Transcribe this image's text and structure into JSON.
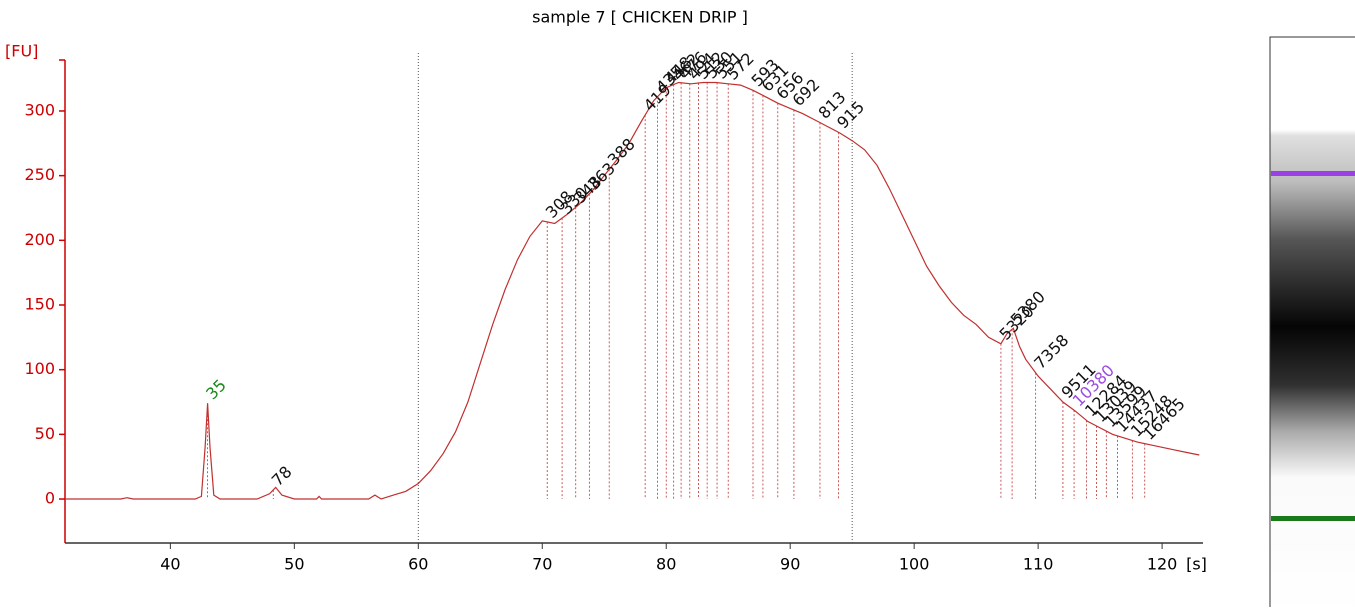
{
  "chart_data": {
    "type": "line",
    "title": "sample 7  [ CHICKEN DRIP ]",
    "ylabel": "[FU]",
    "xlabel": "[s]",
    "xlim": [
      31.5,
      123.3
    ],
    "ylim": [
      -34,
      351
    ],
    "xticks": [
      40,
      50,
      60,
      70,
      80,
      90,
      100,
      110,
      120
    ],
    "yticks": [
      0,
      50,
      100,
      150,
      200,
      250,
      300
    ],
    "axis_color": "#cc0000",
    "region": [
      60,
      95
    ],
    "series": [
      {
        "color": "#c0302f",
        "x": [
          31.5,
          36,
          36.5,
          37,
          42,
          42.5,
          42.8,
          43,
          43.2,
          43.5,
          44,
          47,
          48,
          48.5,
          49,
          50,
          51.8,
          52,
          52.2,
          56,
          56.5,
          57,
          58,
          59,
          60,
          61,
          62,
          63,
          64,
          65,
          66,
          67,
          68,
          69,
          70,
          71,
          72,
          73,
          74,
          75,
          76,
          77,
          78,
          79,
          80,
          81,
          82,
          83,
          84,
          85,
          86,
          87,
          88,
          89,
          90,
          91,
          92,
          93,
          94,
          95,
          96,
          97,
          98,
          99,
          100,
          101,
          102,
          103,
          104,
          105,
          106,
          107,
          107.5,
          108,
          108.5,
          109,
          110,
          111,
          112,
          113,
          114,
          115,
          116,
          117,
          118,
          119,
          120,
          121,
          122,
          123
        ],
        "values": [
          0,
          0,
          1,
          0,
          0,
          2,
          40,
          74,
          40,
          3,
          0,
          0,
          4,
          9,
          3,
          0,
          0,
          2,
          0,
          0,
          3,
          0,
          3,
          6,
          12,
          22,
          35,
          52,
          75,
          105,
          135,
          162,
          185,
          203,
          215,
          213,
          220,
          228,
          238,
          250,
          262,
          275,
          292,
          308,
          318,
          322,
          321,
          322,
          322,
          321,
          320,
          316,
          311,
          306,
          302,
          298,
          293,
          288,
          283,
          277,
          270,
          258,
          240,
          220,
          200,
          180,
          165,
          152,
          142,
          135,
          125,
          120,
          128,
          132,
          118,
          108,
          95,
          85,
          75,
          68,
          60,
          55,
          50,
          47,
          44,
          42,
          40,
          38,
          36,
          34
        ]
      }
    ],
    "peaks": [
      {
        "time": 43,
        "size": 35,
        "color": "#1a8a1a"
      },
      {
        "time": 48.3,
        "size": 78,
        "color": "#111111"
      },
      {
        "time": 70.4,
        "size": 308,
        "color": "#111111"
      },
      {
        "time": 71.6,
        "size": 330,
        "color": "#111111"
      },
      {
        "time": 72.7,
        "size": 348,
        "color": "#111111"
      },
      {
        "time": 73.8,
        "size": 363,
        "color": "#111111"
      },
      {
        "time": 75.4,
        "size": 388,
        "color": "#111111"
      },
      {
        "time": 78.3,
        "size": 419,
        "color": "#111111"
      },
      {
        "time": 79.3,
        "size": 435,
        "color": "#111111"
      },
      {
        "time": 80,
        "size": 448,
        "color": "#111111"
      },
      {
        "time": 80.6,
        "size": 462,
        "color": "#111111"
      },
      {
        "time": 81.2,
        "size": 476,
        "color": "#111111"
      },
      {
        "time": 81.9,
        "size": 494,
        "color": "#111111"
      },
      {
        "time": 82.6,
        "size": 512,
        "color": "#111111"
      },
      {
        "time": 83.3,
        "size": 530,
        "color": "#111111"
      },
      {
        "time": 84.1,
        "size": 551,
        "color": "#111111"
      },
      {
        "time": 85,
        "size": 572,
        "color": "#111111"
      },
      {
        "time": 87,
        "size": 593,
        "color": "#111111"
      },
      {
        "time": 87.8,
        "size": 631,
        "color": "#111111"
      },
      {
        "time": 89,
        "size": 656,
        "color": "#111111"
      },
      {
        "time": 90.3,
        "size": 692,
        "color": "#111111"
      },
      {
        "time": 92.4,
        "size": 813,
        "color": "#111111"
      },
      {
        "time": 93.9,
        "size": 915,
        "color": "#111111"
      },
      {
        "time": 107,
        "size": 5320,
        "color": "#111111"
      },
      {
        "time": 107.9,
        "size": 5380,
        "color": "#111111"
      },
      {
        "time": 109.8,
        "size": 7358,
        "color": "#111111"
      },
      {
        "time": 112,
        "size": 9511,
        "color": "#111111"
      },
      {
        "time": 112.9,
        "size": 10380,
        "color": "#9b4de0"
      },
      {
        "time": 113.9,
        "size": 12284,
        "color": "#111111"
      },
      {
        "time": 114.7,
        "size": 13039,
        "color": "#111111"
      },
      {
        "time": 115.5,
        "size": 13599,
        "color": "#111111"
      },
      {
        "time": 116.4,
        "size": 14437,
        "color": "#111111"
      },
      {
        "time": 117.6,
        "size": 15248,
        "color": "#111111"
      },
      {
        "time": 118.6,
        "size": 16465,
        "color": "#111111"
      }
    ]
  }
}
